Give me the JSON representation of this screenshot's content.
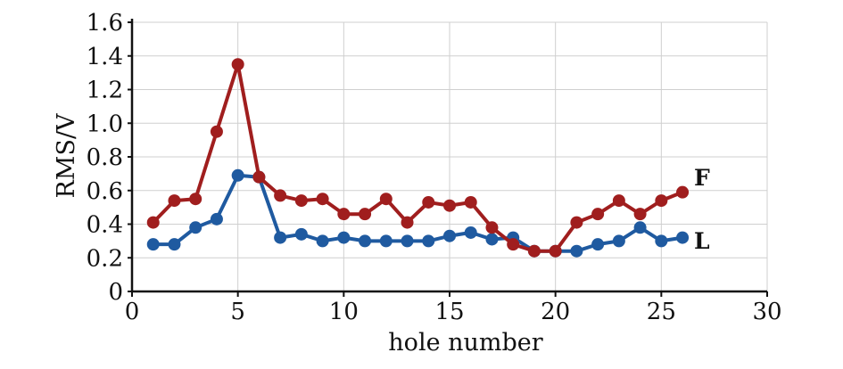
{
  "chart_data": {
    "type": "line",
    "title": "",
    "xlabel": "hole number",
    "ylabel": "RMS/V",
    "xlim": [
      0,
      30
    ],
    "ylim": [
      0,
      1.6
    ],
    "x_ticks": [
      "0",
      "5",
      "10",
      "15",
      "20",
      "25",
      "30"
    ],
    "y_ticks": [
      "0",
      "0.2",
      "0.4",
      "0.6",
      "0.8",
      "1.0",
      "1.2",
      "1.4",
      "1.6"
    ],
    "grid": true,
    "legend": "none",
    "x": [
      1,
      2,
      3,
      4,
      5,
      6,
      7,
      8,
      9,
      10,
      11,
      12,
      13,
      14,
      15,
      16,
      17,
      18,
      19,
      20,
      21,
      22,
      23,
      24,
      25,
      26
    ],
    "series": [
      {
        "name": "F",
        "color": "#a01e1e",
        "values": [
          0.41,
          0.54,
          0.55,
          0.95,
          1.35,
          0.68,
          0.57,
          0.54,
          0.55,
          0.46,
          0.46,
          0.55,
          0.41,
          0.53,
          0.51,
          0.53,
          0.38,
          0.28,
          0.24,
          0.24,
          0.41,
          0.46,
          0.54,
          0.46,
          0.54,
          0.59
        ]
      },
      {
        "name": "L",
        "color": "#1f5aa0",
        "values": [
          0.28,
          0.28,
          0.38,
          0.43,
          0.69,
          0.68,
          0.32,
          0.34,
          0.3,
          0.32,
          0.3,
          0.3,
          0.3,
          0.3,
          0.33,
          0.35,
          0.31,
          0.32,
          0.24,
          0.24,
          0.24,
          0.28,
          0.3,
          0.38,
          0.3,
          0.32
        ]
      }
    ]
  }
}
